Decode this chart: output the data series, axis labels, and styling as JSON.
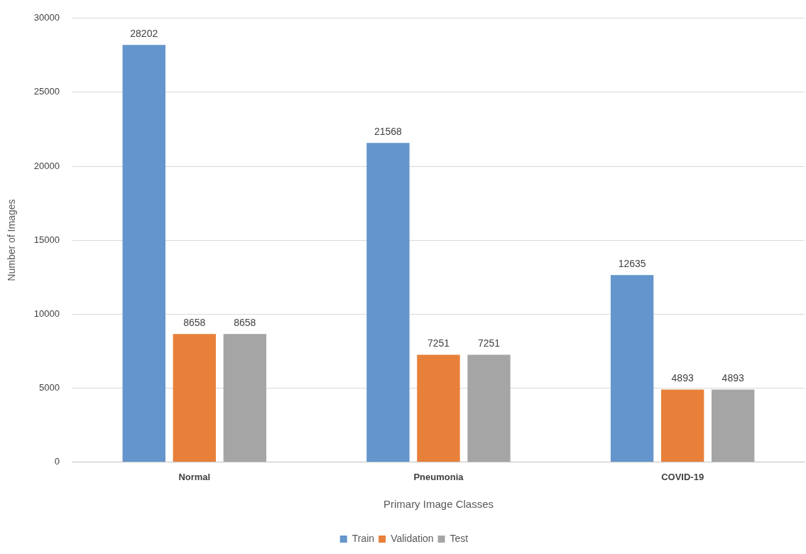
{
  "chart_data": {
    "type": "bar",
    "xlabel": "Primary Image Classes",
    "ylabel": "Number of Images",
    "categories": [
      "Normal",
      "Pneumonia",
      "COVID-19"
    ],
    "series": [
      {
        "name": "Train",
        "color": "#6495cd",
        "values": [
          28202,
          21568,
          12635
        ]
      },
      {
        "name": "Validation",
        "color": "#e8803a",
        "values": [
          8658,
          7251,
          4893
        ]
      },
      {
        "name": "Test",
        "color": "#a5a5a5",
        "values": [
          8658,
          7251,
          4893
        ]
      }
    ],
    "ylim": [
      0,
      30000
    ],
    "yticks": [
      0,
      5000,
      10000,
      15000,
      20000,
      25000,
      30000
    ],
    "grid": "y",
    "legend": "bottom",
    "data_labels": true
  }
}
